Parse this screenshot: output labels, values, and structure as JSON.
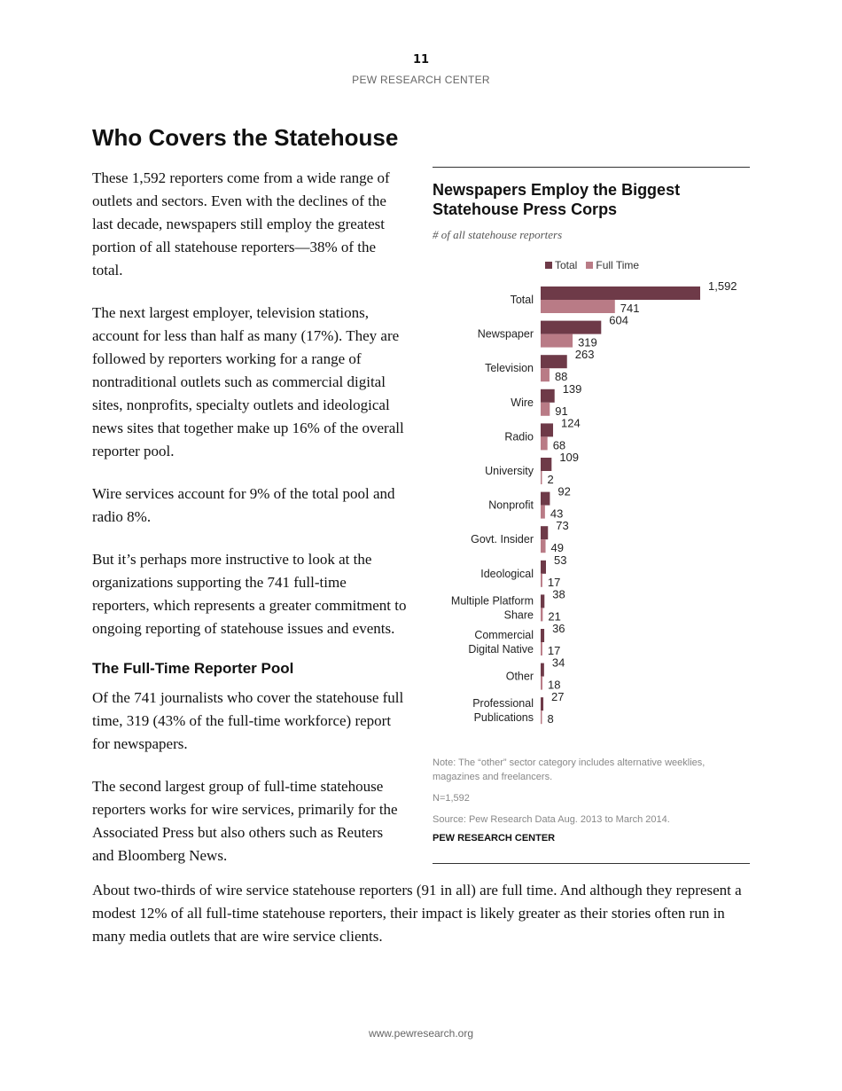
{
  "header": {
    "page_number": "11",
    "org": "PEW RESEARCH CENTER"
  },
  "title": "Who Covers the Statehouse",
  "left_paragraphs": [
    "These 1,592 reporters come from a wide range of outlets and sectors. Even with the declines of the last decade, newspapers still employ the greatest portion of all statehouse reporters—38% of the total.",
    "The next largest employer, television stations, account for less than half as many (17%). They are followed by reporters working for a range of nontraditional outlets such as commercial digital sites, nonprofits, specialty outlets and ideological news sites that together make up 16% of the overall reporter pool.",
    "Wire services account for 9% of the total pool and radio 8%.",
    "But it’s perhaps more instructive to look at the organizations supporting the 741 full-time reporters, which represents a greater commitment to ongoing reporting of statehouse issues and events."
  ],
  "subhead": "The Full-Time Reporter Pool",
  "left_paragraphs2": [
    "Of the 741 journalists who cover the statehouse full time, 319 (43% of the full-time workforce) report for newspapers.",
    "The second largest group of full-time statehouse reporters works for wire services, primarily for the Associated Press but also others such as Reuters and Bloomberg News."
  ],
  "full_paragraph": "About two-thirds of wire service statehouse reporters (91 in all) are full time. And although they represent a modest 12% of all full-time statehouse reporters, their impact is likely greater as their stories often run in many media outlets that are wire service clients.",
  "footer": "www.pewresearch.org",
  "chart_data": {
    "type": "bar",
    "orientation": "horizontal",
    "title": "Newspapers Employ the Biggest Statehouse Press Corps",
    "subtitle": "# of all statehouse reporters",
    "legend_position": "top",
    "categories": [
      "Total",
      "Newspaper",
      "Television",
      "Wire",
      "Radio",
      "University",
      "Nonprofit",
      "Govt. Insider",
      "Ideological",
      "Multiple Platform Share",
      "Commercial Digital Native",
      "Other",
      "Professional Publications"
    ],
    "category_lines": [
      [
        "Total"
      ],
      [
        "Newspaper"
      ],
      [
        "Television"
      ],
      [
        "Wire"
      ],
      [
        "Radio"
      ],
      [
        "University"
      ],
      [
        "Nonprofit"
      ],
      [
        "Govt. Insider"
      ],
      [
        "Ideological"
      ],
      [
        "Multiple Platform",
        "Share"
      ],
      [
        "Commercial",
        "Digital Native"
      ],
      [
        "Other"
      ],
      [
        "Professional",
        "Publications"
      ]
    ],
    "series": [
      {
        "name": "Total",
        "color": "#6e3a48",
        "values": [
          1592,
          604,
          263,
          139,
          124,
          109,
          92,
          73,
          53,
          38,
          36,
          34,
          27
        ]
      },
      {
        "name": "Full Time",
        "color": "#b97b86",
        "values": [
          741,
          319,
          88,
          91,
          68,
          2,
          43,
          49,
          17,
          21,
          17,
          18,
          8
        ]
      }
    ],
    "xlim": [
      0,
      1592
    ],
    "grid": false,
    "note": "Note: The “other” sector category includes alternative weeklies, magazines and freelancers.",
    "n": "N=1,592",
    "source": "Source: Pew Research Data Aug. 2013 to March 2014.",
    "credit": "PEW RESEARCH CENTER"
  }
}
